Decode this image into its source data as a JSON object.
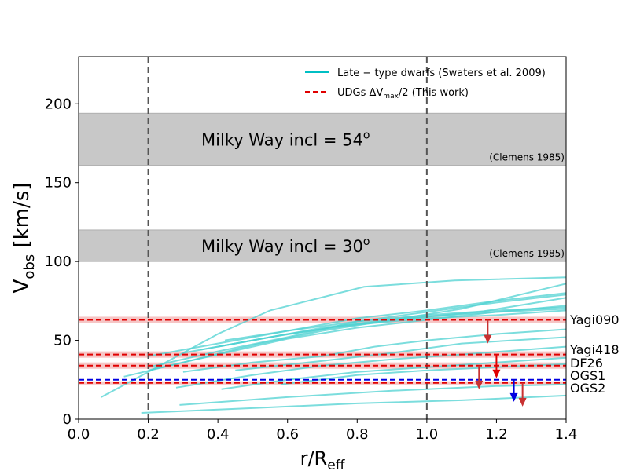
{
  "chart_data": {
    "type": "line",
    "xlabel": "r/R",
    "xlabel_sub": "eff",
    "ylabel": "V",
    "ylabel_sub": "obs",
    "ylabel_unit": " [km/s]",
    "xlim": [
      0.0,
      1.4
    ],
    "ylim": [
      0,
      230
    ],
    "xticks": [
      0.0,
      0.2,
      0.4,
      0.6,
      0.8,
      1.0,
      1.2,
      1.4
    ],
    "xtick_labels": [
      "0.0",
      "0.2",
      "0.4",
      "0.6",
      "0.8",
      "1.0",
      "1.2",
      "1.4"
    ],
    "yticks": [
      0,
      50,
      100,
      150,
      200
    ],
    "ytick_labels": [
      "0",
      "50",
      "100",
      "150",
      "200"
    ],
    "vlines": [
      0.2,
      1.0
    ],
    "colors": {
      "curves": "#4fd1d1",
      "udg": "#e00000",
      "udg_band": "#f4b6b6",
      "ogs1": "#0000e0",
      "arrow_dark": "#c83232",
      "band": "#c8c8c8",
      "vline": "#555555"
    },
    "bands": [
      {
        "name": "Milky Way 54",
        "label_main": "Milky Way incl = 54",
        "label_sup": "o",
        "ref": "(Clemens 1985)",
        "y0": 161,
        "y1": 194
      },
      {
        "name": "Milky Way 30",
        "label_main": "Milky Way incl = 30",
        "label_sup": "o",
        "ref": "(Clemens 1985)",
        "y0": 100,
        "y1": 120
      }
    ],
    "legend": {
      "location": "top-right",
      "entries": [
        {
          "label": "Late − type dwarfs (Swaters et al. 2009)",
          "style": "solid",
          "color": "#00bfc4"
        },
        {
          "label": "UDGs ΔV",
          "label_sub": "max",
          "label_tail": "/2 (This work)",
          "style": "dashed",
          "color": "#e00000"
        }
      ]
    },
    "udgs": [
      {
        "name": "Yagi090",
        "value": 63,
        "band": [
          61,
          65
        ],
        "color": "#e00000",
        "arrow_x": 1.175,
        "arrow_from": 63,
        "arrow_to": 49
      },
      {
        "name": "Yagi418",
        "value": 41,
        "band": [
          39,
          43
        ],
        "color": "#e00000",
        "arrow_x": 1.2,
        "arrow_from": 41,
        "arrow_to": 27
      },
      {
        "name": "DF26",
        "value": 34,
        "band": [
          32,
          36
        ],
        "color": "#e00000",
        "arrow_x": 1.15,
        "arrow_from": 34,
        "arrow_to": 20
      },
      {
        "name": "OGS1",
        "value": 25,
        "band": null,
        "color": "#0000e0",
        "arrow_x": 1.25,
        "arrow_from": 25,
        "arrow_to": 12
      },
      {
        "name": "OGS2",
        "value": 23,
        "band": [
          22,
          24
        ],
        "color": "#e00000",
        "arrow_x": 1.275,
        "arrow_from": 23,
        "arrow_to": 9
      }
    ],
    "series": [
      {
        "name": "dwarf-1",
        "x": [
          0.065,
          0.2,
          0.4,
          0.55,
          0.82,
          1.08,
          1.4
        ],
        "y": [
          14,
          30,
          54,
          69,
          84,
          88,
          90
        ]
      },
      {
        "name": "dwarf-2",
        "x": [
          0.13,
          0.3,
          0.5,
          0.7,
          0.9,
          1.1,
          1.4
        ],
        "y": [
          27,
          36,
          47,
          56,
          63,
          70,
          86
        ]
      },
      {
        "name": "dwarf-3",
        "x": [
          0.2,
          0.4,
          0.6,
          0.8,
          1.0,
          1.2,
          1.4
        ],
        "y": [
          40,
          48,
          56,
          64,
          69,
          75,
          80
        ]
      },
      {
        "name": "dwarf-4",
        "x": [
          0.2,
          0.4,
          0.6,
          0.8,
          1.0,
          1.2,
          1.4
        ],
        "y": [
          33,
          43,
          52,
          62,
          68,
          74,
          79
        ]
      },
      {
        "name": "dwarf-5",
        "x": [
          0.2,
          0.4,
          0.6,
          0.8,
          1.0,
          1.2,
          1.4
        ],
        "y": [
          31,
          41,
          51,
          58,
          63,
          68,
          72
        ]
      },
      {
        "name": "dwarf-6",
        "x": [
          0.3,
          0.5,
          0.7,
          0.85,
          1.0,
          1.2,
          1.4
        ],
        "y": [
          42,
          50,
          58,
          62,
          65,
          68,
          70
        ]
      },
      {
        "name": "dwarf-7",
        "x": [
          0.42,
          0.6,
          0.8,
          1.0,
          1.2,
          1.4
        ],
        "y": [
          50,
          56,
          62,
          66,
          69,
          71
        ]
      },
      {
        "name": "dwarf-8",
        "x": [
          0.35,
          0.55,
          0.75,
          0.95,
          1.15,
          1.4
        ],
        "y": [
          44,
          52,
          59,
          64,
          68,
          77
        ]
      },
      {
        "name": "dwarf-9",
        "x": [
          0.4,
          0.6,
          0.8,
          1.0,
          1.2,
          1.4
        ],
        "y": [
          46,
          54,
          60,
          64,
          66,
          69
        ]
      },
      {
        "name": "dwarf-10",
        "x": [
          0.3,
          0.5,
          0.7,
          0.85,
          1.0,
          1.2,
          1.4
        ],
        "y": [
          30,
          36,
          40,
          46,
          50,
          54,
          57
        ]
      },
      {
        "name": "dwarf-11",
        "x": [
          0.45,
          0.7,
          0.9,
          1.1,
          1.4
        ],
        "y": [
          31,
          37,
          42,
          48,
          52
        ]
      },
      {
        "name": "dwarf-12",
        "x": [
          0.28,
          0.5,
          0.7,
          0.9,
          1.1,
          1.4
        ],
        "y": [
          20,
          28,
          34,
          38,
          41,
          46
        ]
      },
      {
        "name": "dwarf-13",
        "x": [
          0.41,
          0.6,
          0.8,
          1.0,
          1.2,
          1.4
        ],
        "y": [
          19,
          25,
          30,
          33,
          36,
          39
        ]
      },
      {
        "name": "dwarf-14",
        "x": [
          0.58,
          0.8,
          1.0,
          1.2,
          1.4
        ],
        "y": [
          22,
          28,
          31,
          33,
          35
        ]
      },
      {
        "name": "dwarf-15",
        "x": [
          0.29,
          0.6,
          0.9,
          1.2,
          1.4
        ],
        "y": [
          9,
          14,
          18,
          21,
          22
        ]
      },
      {
        "name": "dwarf-16",
        "x": [
          0.18,
          0.5,
          0.8,
          1.1,
          1.4
        ],
        "y": [
          4,
          7,
          10,
          12,
          15
        ]
      }
    ]
  }
}
